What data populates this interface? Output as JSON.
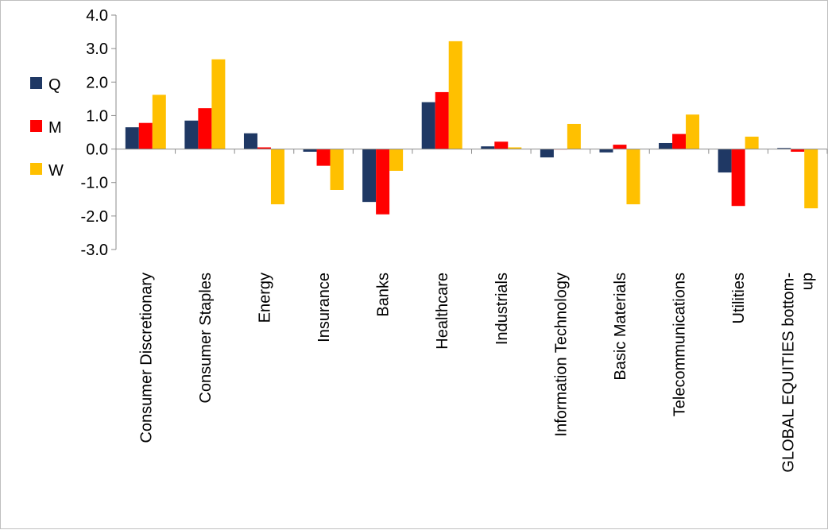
{
  "chart_data": {
    "type": "bar",
    "title": "",
    "xlabel": "",
    "ylabel": "",
    "ylim": [
      -3.0,
      4.0
    ],
    "yticks": [
      4.0,
      3.0,
      2.0,
      1.0,
      0.0,
      -1.0,
      -2.0,
      -3.0
    ],
    "grid": false,
    "legend_position": "left",
    "categories": [
      "Consumer Discretionary",
      "Consumer Staples",
      "Energy",
      "Insurance",
      "Banks",
      "Healthcare",
      "Industrials",
      "Information Technology",
      "Basic Materials",
      "Telecommunications",
      "Utilities",
      "GLOBAL EQUITIES bottom-up"
    ],
    "series": [
      {
        "name": "Q",
        "color": "#1f3864",
        "values": [
          0.65,
          0.85,
          0.47,
          -0.08,
          -1.58,
          1.4,
          0.08,
          -0.25,
          -0.1,
          0.18,
          -0.7,
          0.03
        ]
      },
      {
        "name": "M",
        "color": "#ff0000",
        "values": [
          0.78,
          1.22,
          0.05,
          -0.5,
          -1.95,
          1.7,
          0.22,
          0.0,
          0.13,
          0.45,
          -1.7,
          -0.08
        ]
      },
      {
        "name": "W",
        "color": "#ffc000",
        "values": [
          1.62,
          2.68,
          -1.65,
          -1.22,
          -0.65,
          3.22,
          0.05,
          0.75,
          -1.65,
          1.03,
          0.37,
          -1.77
        ]
      }
    ]
  }
}
